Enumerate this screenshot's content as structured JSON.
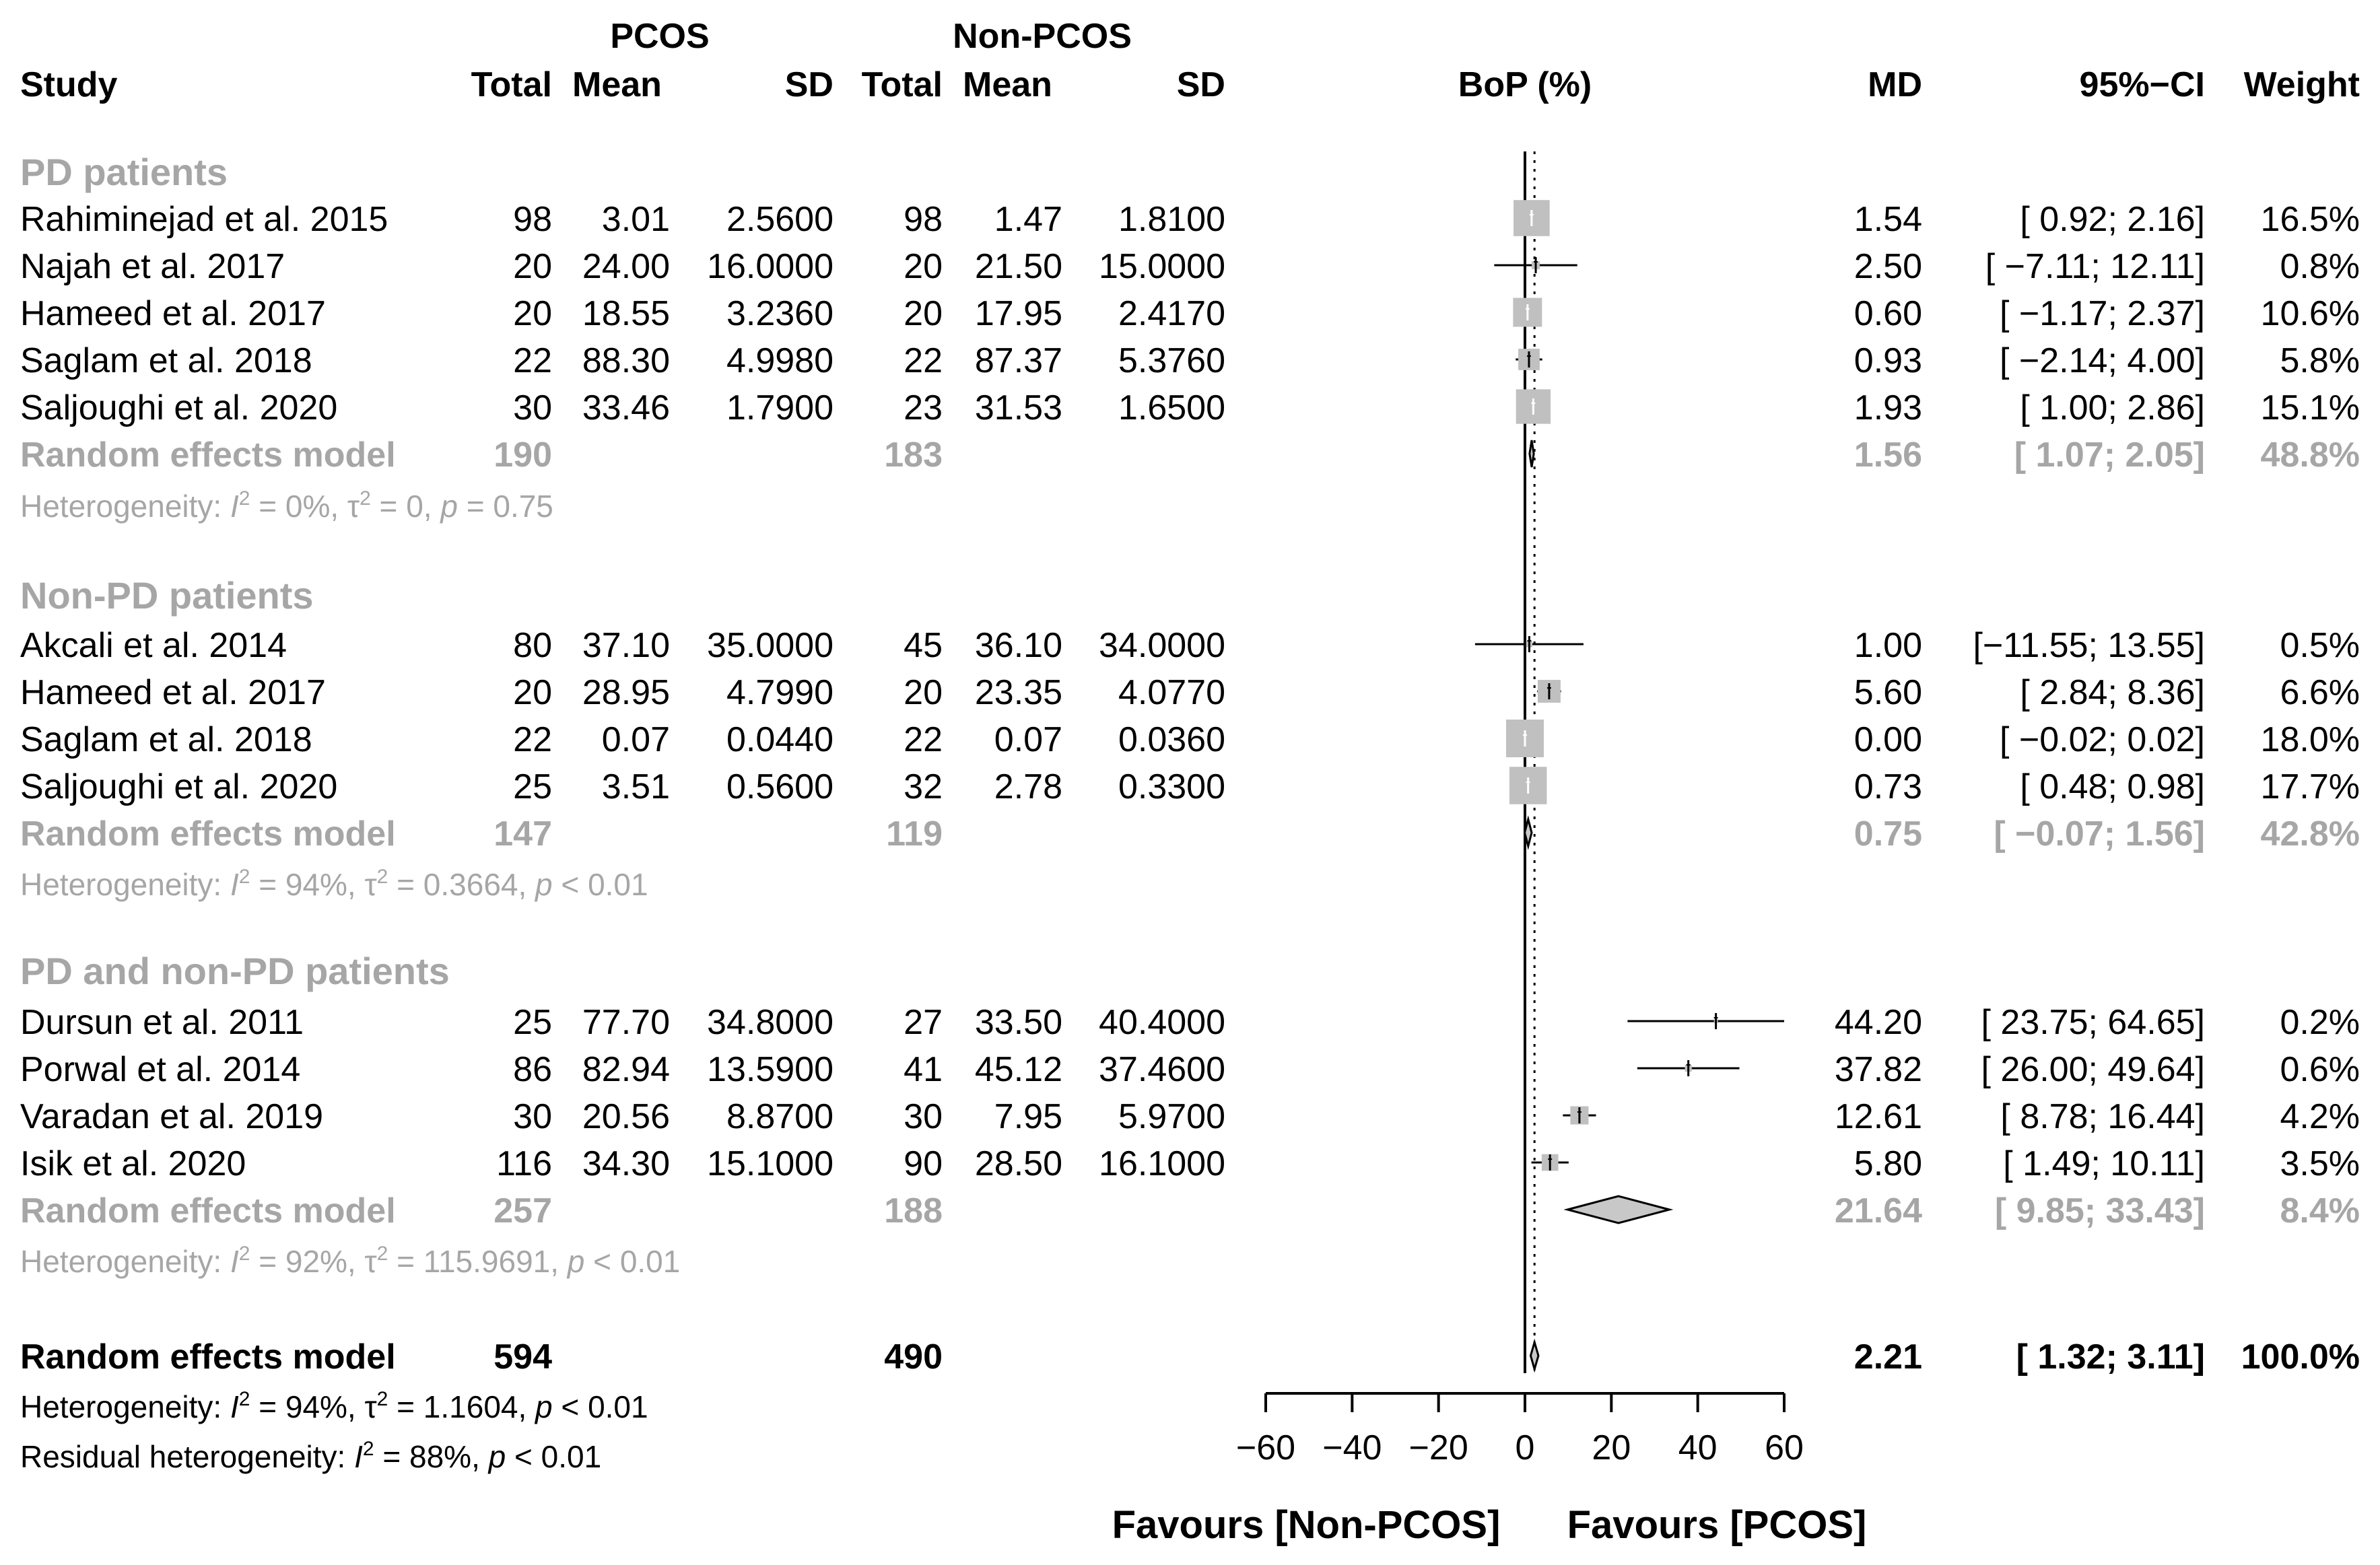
{
  "header": {
    "group1": "PCOS",
    "group2": "Non-PCOS",
    "study": "Study",
    "total1": "Total",
    "mean1": "Mean",
    "sd1": "SD",
    "total2": "Total",
    "mean2": "Mean",
    "sd2": "SD",
    "plot_title": "BoP (%)",
    "md": "MD",
    "ci": "95%−CI",
    "weight": "Weight"
  },
  "chart_data": {
    "type": "forest",
    "title": "BoP (%)",
    "xlim": [
      -60,
      60
    ],
    "ticks": [
      -60,
      -40,
      -20,
      0,
      20,
      40,
      60
    ],
    "tick_labels": [
      "−60",
      "−40",
      "−20",
      "0",
      "20",
      "40",
      "60"
    ],
    "xlabel_left": "Favours [Non-PCOS]",
    "xlabel_right": "Favours [PCOS]",
    "reference_line": 0,
    "overall_line": 2.21,
    "subgroups": [
      {
        "name": "PD patients",
        "studies": [
          {
            "study": "Rahiminejad et al. 2015",
            "t1": "98",
            "m1": "3.01",
            "sd1": "2.5600",
            "t2": "98",
            "m2": "1.47",
            "sd2": "1.8100",
            "md": "1.54",
            "ci_text": "[ 0.92; 2.16]",
            "w": "16.5%",
            "est": 1.54,
            "lo": 0.92,
            "hi": 2.16,
            "weight": 16.5
          },
          {
            "study": "Najah et al. 2017",
            "t1": "20",
            "m1": "24.00",
            "sd1": "16.0000",
            "t2": "20",
            "m2": "21.50",
            "sd2": "15.0000",
            "md": "2.50",
            "ci_text": "[ −7.11; 12.11]",
            "w": "0.8%",
            "est": 2.5,
            "lo": -7.11,
            "hi": 12.11,
            "weight": 0.8
          },
          {
            "study": "Hameed et al. 2017",
            "t1": "20",
            "m1": "18.55",
            "sd1": "3.2360",
            "t2": "20",
            "m2": "17.95",
            "sd2": "2.4170",
            "md": "0.60",
            "ci_text": "[ −1.17; 2.37]",
            "w": "10.6%",
            "est": 0.6,
            "lo": -1.17,
            "hi": 2.37,
            "weight": 10.6
          },
          {
            "study": "Saglam et al. 2018",
            "t1": "22",
            "m1": "88.30",
            "sd1": "4.9980",
            "t2": "22",
            "m2": "87.37",
            "sd2": "5.3760",
            "md": "0.93",
            "ci_text": "[ −2.14; 4.00]",
            "w": "5.8%",
            "est": 0.93,
            "lo": -2.14,
            "hi": 4.0,
            "weight": 5.8
          },
          {
            "study": "Saljoughi et al. 2020",
            "t1": "30",
            "m1": "33.46",
            "sd1": "1.7900",
            "t2": "23",
            "m2": "31.53",
            "sd2": "1.6500",
            "md": "1.93",
            "ci_text": "[ 1.00; 2.86]",
            "w": "15.1%",
            "est": 1.93,
            "lo": 1.0,
            "hi": 2.86,
            "weight": 15.1
          }
        ],
        "pooled": {
          "label": "Random effects model",
          "t1": "190",
          "t2": "183",
          "md": "1.56",
          "ci_text": "[ 1.07; 2.05]",
          "w": "48.8%",
          "est": 1.56,
          "lo": 1.07,
          "hi": 2.05
        },
        "het": {
          "pre": "Heterogeneity: ",
          "i": "I",
          "sup": "2",
          "mid": " = 0%, τ",
          "sup2": "2",
          "mid2": " = 0, ",
          "p": "p",
          "post": " = 0.75"
        }
      },
      {
        "name": "Non-PD patients",
        "studies": [
          {
            "study": "Akcali et al. 2014",
            "t1": "80",
            "m1": "37.10",
            "sd1": "35.0000",
            "t2": "45",
            "m2": "36.10",
            "sd2": "34.0000",
            "md": "1.00",
            "ci_text": "[−11.55; 13.55]",
            "w": "0.5%",
            "est": 1.0,
            "lo": -11.55,
            "hi": 13.55,
            "weight": 0.5
          },
          {
            "study": "Hameed et al. 2017",
            "t1": "20",
            "m1": "28.95",
            "sd1": "4.7990",
            "t2": "20",
            "m2": "23.35",
            "sd2": "4.0770",
            "md": "5.60",
            "ci_text": "[ 2.84; 8.36]",
            "w": "6.6%",
            "est": 5.6,
            "lo": 2.84,
            "hi": 8.36,
            "weight": 6.6
          },
          {
            "study": "Saglam et al. 2018",
            "t1": "22",
            "m1": "0.07",
            "sd1": "0.0440",
            "t2": "22",
            "m2": "0.07",
            "sd2": "0.0360",
            "md": "0.00",
            "ci_text": "[ −0.02; 0.02]",
            "w": "18.0%",
            "est": 0.0,
            "lo": -0.02,
            "hi": 0.02,
            "weight": 18.0
          },
          {
            "study": "Saljoughi et al. 2020",
            "t1": "25",
            "m1": "3.51",
            "sd1": "0.5600",
            "t2": "32",
            "m2": "2.78",
            "sd2": "0.3300",
            "md": "0.73",
            "ci_text": "[ 0.48; 0.98]",
            "w": "17.7%",
            "est": 0.73,
            "lo": 0.48,
            "hi": 0.98,
            "weight": 17.7
          }
        ],
        "pooled": {
          "label": "Random effects model",
          "t1": "147",
          "t2": "119",
          "md": "0.75",
          "ci_text": "[ −0.07; 1.56]",
          "w": "42.8%",
          "est": 0.75,
          "lo": -0.07,
          "hi": 1.56
        },
        "het": {
          "pre": "Heterogeneity: ",
          "i": "I",
          "sup": "2",
          "mid": " = 94%, τ",
          "sup2": "2",
          "mid2": " = 0.3664, ",
          "p": "p",
          "post": " < 0.01"
        }
      },
      {
        "name": "PD and non-PD patients",
        "studies": [
          {
            "study": "Dursun et al. 2011",
            "t1": "25",
            "m1": "77.70",
            "sd1": "34.8000",
            "t2": "27",
            "m2": "33.50",
            "sd2": "40.4000",
            "md": "44.20",
            "ci_text": "[ 23.75; 64.65]",
            "w": "0.2%",
            "est": 44.2,
            "lo": 23.75,
            "hi": 64.65,
            "weight": 0.2
          },
          {
            "study": "Porwal et al. 2014",
            "t1": "86",
            "m1": "82.94",
            "sd1": "13.5900",
            "t2": "41",
            "m2": "45.12",
            "sd2": "37.4600",
            "md": "37.82",
            "ci_text": "[ 26.00; 49.64]",
            "w": "0.6%",
            "est": 37.82,
            "lo": 26.0,
            "hi": 49.64,
            "weight": 0.6
          },
          {
            "study": "Varadan et al. 2019",
            "t1": "30",
            "m1": "20.56",
            "sd1": "8.8700",
            "t2": "30",
            "m2": "7.95",
            "sd2": "5.9700",
            "md": "12.61",
            "ci_text": "[ 8.78; 16.44]",
            "w": "4.2%",
            "est": 12.61,
            "lo": 8.78,
            "hi": 16.44,
            "weight": 4.2
          },
          {
            "study": "Isik et al. 2020",
            "t1": "116",
            "m1": "34.30",
            "sd1": "15.1000",
            "t2": "90",
            "m2": "28.50",
            "sd2": "16.1000",
            "md": "5.80",
            "ci_text": "[ 1.49; 10.11]",
            "w": "3.5%",
            "est": 5.8,
            "lo": 1.49,
            "hi": 10.11,
            "weight": 3.5
          }
        ],
        "pooled": {
          "label": "Random effects model",
          "t1": "257",
          "t2": "188",
          "md": "21.64",
          "ci_text": "[ 9.85; 33.43]",
          "w": "8.4%",
          "est": 21.64,
          "lo": 9.85,
          "hi": 33.43
        },
        "het": {
          "pre": "Heterogeneity: ",
          "i": "I",
          "sup": "2",
          "mid": " = 92%, τ",
          "sup2": "2",
          "mid2": " = 115.9691, ",
          "p": "p",
          "post": " < 0.01"
        }
      }
    ],
    "overall": {
      "label": "Random effects model",
      "t1": "594",
      "t2": "490",
      "md": "2.21",
      "ci_text": "[ 1.32; 3.11]",
      "w": "100.0%",
      "est": 2.21,
      "lo": 1.32,
      "hi": 3.11
    },
    "overall_het": {
      "pre": "Heterogeneity: ",
      "i": "I",
      "sup": "2",
      "mid": " = 94%, τ",
      "sup2": "2",
      "mid2": " = 1.1604, ",
      "p": "p",
      "post": " < 0.01"
    },
    "residual_het": {
      "pre": "Residual heterogeneity: ",
      "i": "I",
      "sup": "2",
      "mid": " = 88%, ",
      "p": "p",
      "post": " < 0.01"
    }
  }
}
